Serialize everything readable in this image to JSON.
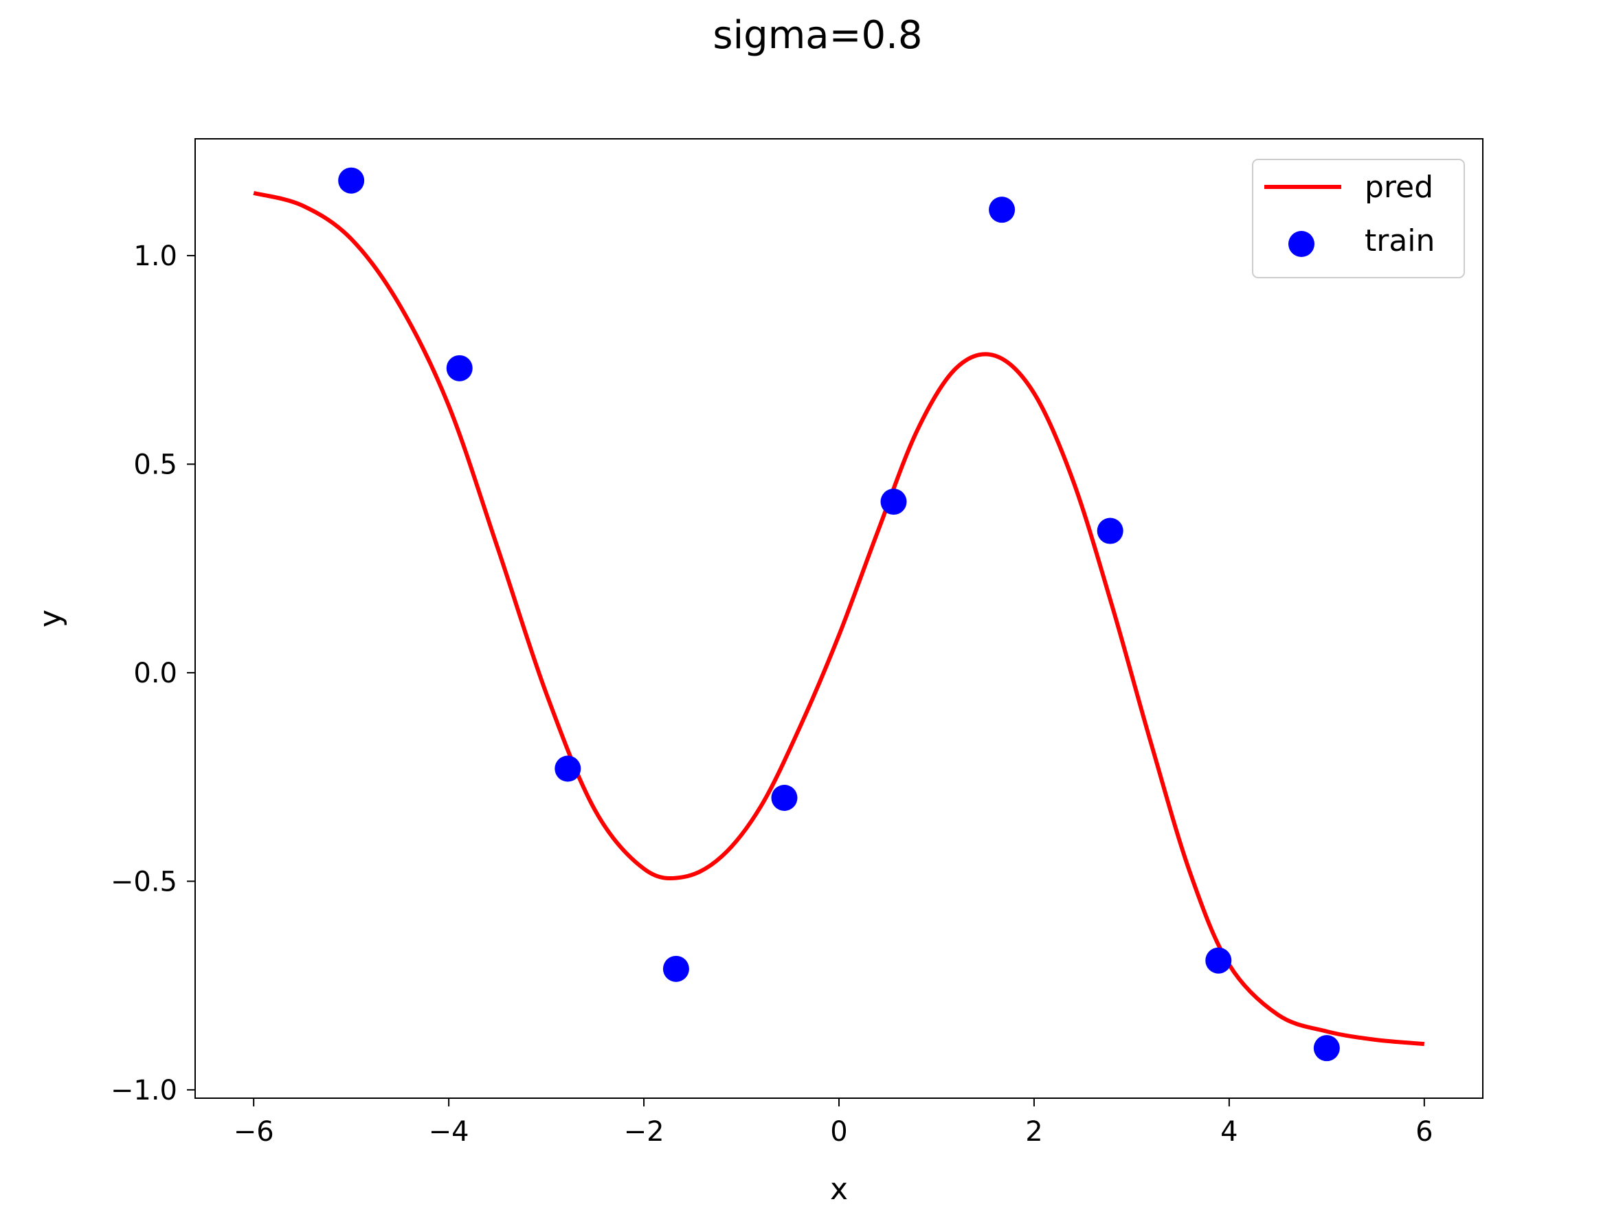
{
  "chart_data": {
    "type": "scatter",
    "title": "sigma=0.8",
    "xlabel": "x",
    "ylabel": "y",
    "xlim": [
      -6.6,
      6.6
    ],
    "ylim": [
      -1.02,
      1.28
    ],
    "xticks": [
      -6,
      -4,
      -2,
      0,
      2,
      4,
      6
    ],
    "xtick_labels": [
      "−6",
      "−4",
      "−2",
      "0",
      "2",
      "4",
      "6"
    ],
    "yticks": [
      -1.0,
      -0.5,
      0.0,
      0.5,
      1.0
    ],
    "ytick_labels": [
      "−1.0",
      "−0.5",
      "0.0",
      "0.5",
      "1.0"
    ],
    "grid": false,
    "legend_position": "top-right",
    "series": [
      {
        "name": "pred",
        "type": "line",
        "color": "#ff0000",
        "x": [
          -6.0,
          -5.5,
          -5.0,
          -4.5,
          -4.0,
          -3.5,
          -3.0,
          -2.5,
          -2.0,
          -1.6,
          -1.2,
          -0.8,
          -0.4,
          0.0,
          0.4,
          0.8,
          1.2,
          1.6,
          2.0,
          2.4,
          2.8,
          3.2,
          3.6,
          4.0,
          4.5,
          5.0,
          5.5,
          6.0
        ],
        "y": [
          1.15,
          1.12,
          1.04,
          0.88,
          0.64,
          0.3,
          -0.05,
          -0.33,
          -0.47,
          -0.49,
          -0.44,
          -0.32,
          -0.13,
          0.09,
          0.34,
          0.58,
          0.73,
          0.76,
          0.67,
          0.46,
          0.16,
          -0.17,
          -0.48,
          -0.7,
          -0.82,
          -0.86,
          -0.88,
          -0.89
        ]
      },
      {
        "name": "train",
        "type": "scatter",
        "color": "#0000ff",
        "x": [
          -5.0,
          -3.89,
          -2.78,
          -1.67,
          -0.56,
          0.56,
          1.67,
          2.78,
          3.89,
          5.0
        ],
        "y": [
          1.18,
          0.73,
          -0.23,
          -0.71,
          -0.3,
          0.41,
          1.11,
          0.34,
          -0.69,
          -0.9
        ]
      }
    ]
  }
}
